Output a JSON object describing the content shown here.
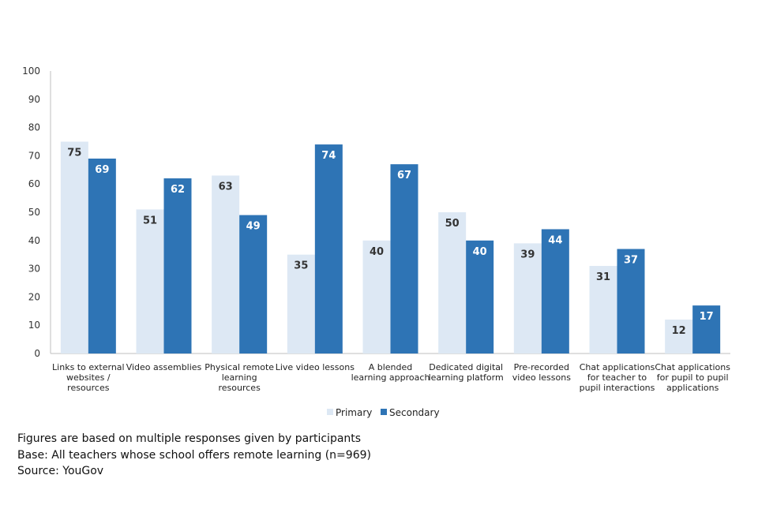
{
  "chart_data": {
    "type": "bar",
    "title": "",
    "xlabel": "",
    "ylabel": "",
    "ylim": [
      0,
      100
    ],
    "yticks": [
      0,
      10,
      20,
      30,
      40,
      50,
      60,
      70,
      80,
      90,
      100
    ],
    "categories": [
      "Links to external websites / resources",
      "Video assemblies",
      "Physical remote learning resources",
      "Live video lessons",
      "A blended learning approach",
      "Dedicated digital learning platform",
      "Pre-recorded video lessons",
      "Chat applications for teacher to pupil interactions",
      "Chat applications for pupil to pupil applications"
    ],
    "category_lines": [
      [
        "Links to external",
        "websites /",
        "resources"
      ],
      [
        "Video assemblies"
      ],
      [
        "Physical remote",
        "learning",
        "resources"
      ],
      [
        "Live video lessons"
      ],
      [
        "A blended",
        "learning approach"
      ],
      [
        "Dedicated digital",
        "learning platform"
      ],
      [
        "Pre-recorded",
        "video lessons"
      ],
      [
        "Chat applications",
        "for teacher to",
        "pupil interactions"
      ],
      [
        "Chat applications",
        "for pupil to pupil",
        "applications"
      ]
    ],
    "series": [
      {
        "name": "Primary",
        "color": "#dde8f4",
        "label_color": "#333333",
        "values": [
          75,
          51,
          63,
          35,
          40,
          50,
          39,
          31,
          12
        ]
      },
      {
        "name": "Secondary",
        "color": "#2e74b5",
        "label_color": "#ffffff",
        "values": [
          69,
          62,
          49,
          74,
          67,
          40,
          44,
          37,
          17
        ]
      }
    ],
    "legend_position": "bottom",
    "grid": false
  },
  "notes": {
    "line1": "Figures are based on multiple  responses given by participants",
    "line2": "Base: All teachers whose school offers remote learning  (n=969)",
    "line3": "Source: YouGov"
  }
}
